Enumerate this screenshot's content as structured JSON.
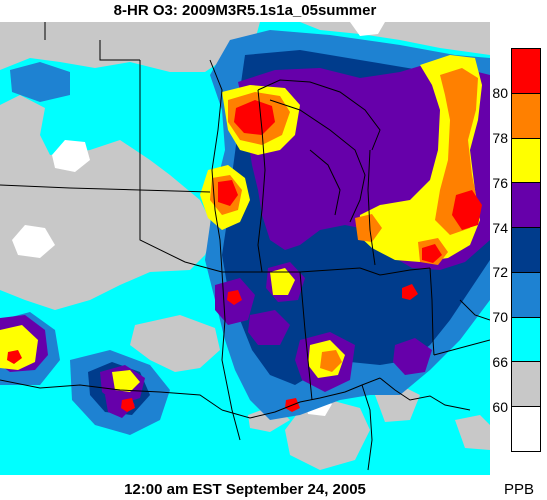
{
  "header": {
    "title": "8-HR O3: 2009M3R5.1s1a_05summer"
  },
  "footer": {
    "timestamp": "12:00 am EST September 24, 2005"
  },
  "legend": {
    "units": "PPB",
    "bins": [
      {
        "color": "#ff0000"
      },
      {
        "color": "#ff8000"
      },
      {
        "color": "#ffff00"
      },
      {
        "color": "#6600aa"
      },
      {
        "color": "#003c8c"
      },
      {
        "color": "#1e82d2"
      },
      {
        "color": "#00ffff"
      },
      {
        "color": "#c8c8c8"
      },
      {
        "color": "#ffffff"
      }
    ],
    "ticks": [
      "80",
      "78",
      "76",
      "74",
      "72",
      "70",
      "66",
      "60"
    ]
  },
  "map": {
    "background_color": "#00ffff",
    "lake_color": "#c8c8c8",
    "boundary_color": "#000000"
  }
}
